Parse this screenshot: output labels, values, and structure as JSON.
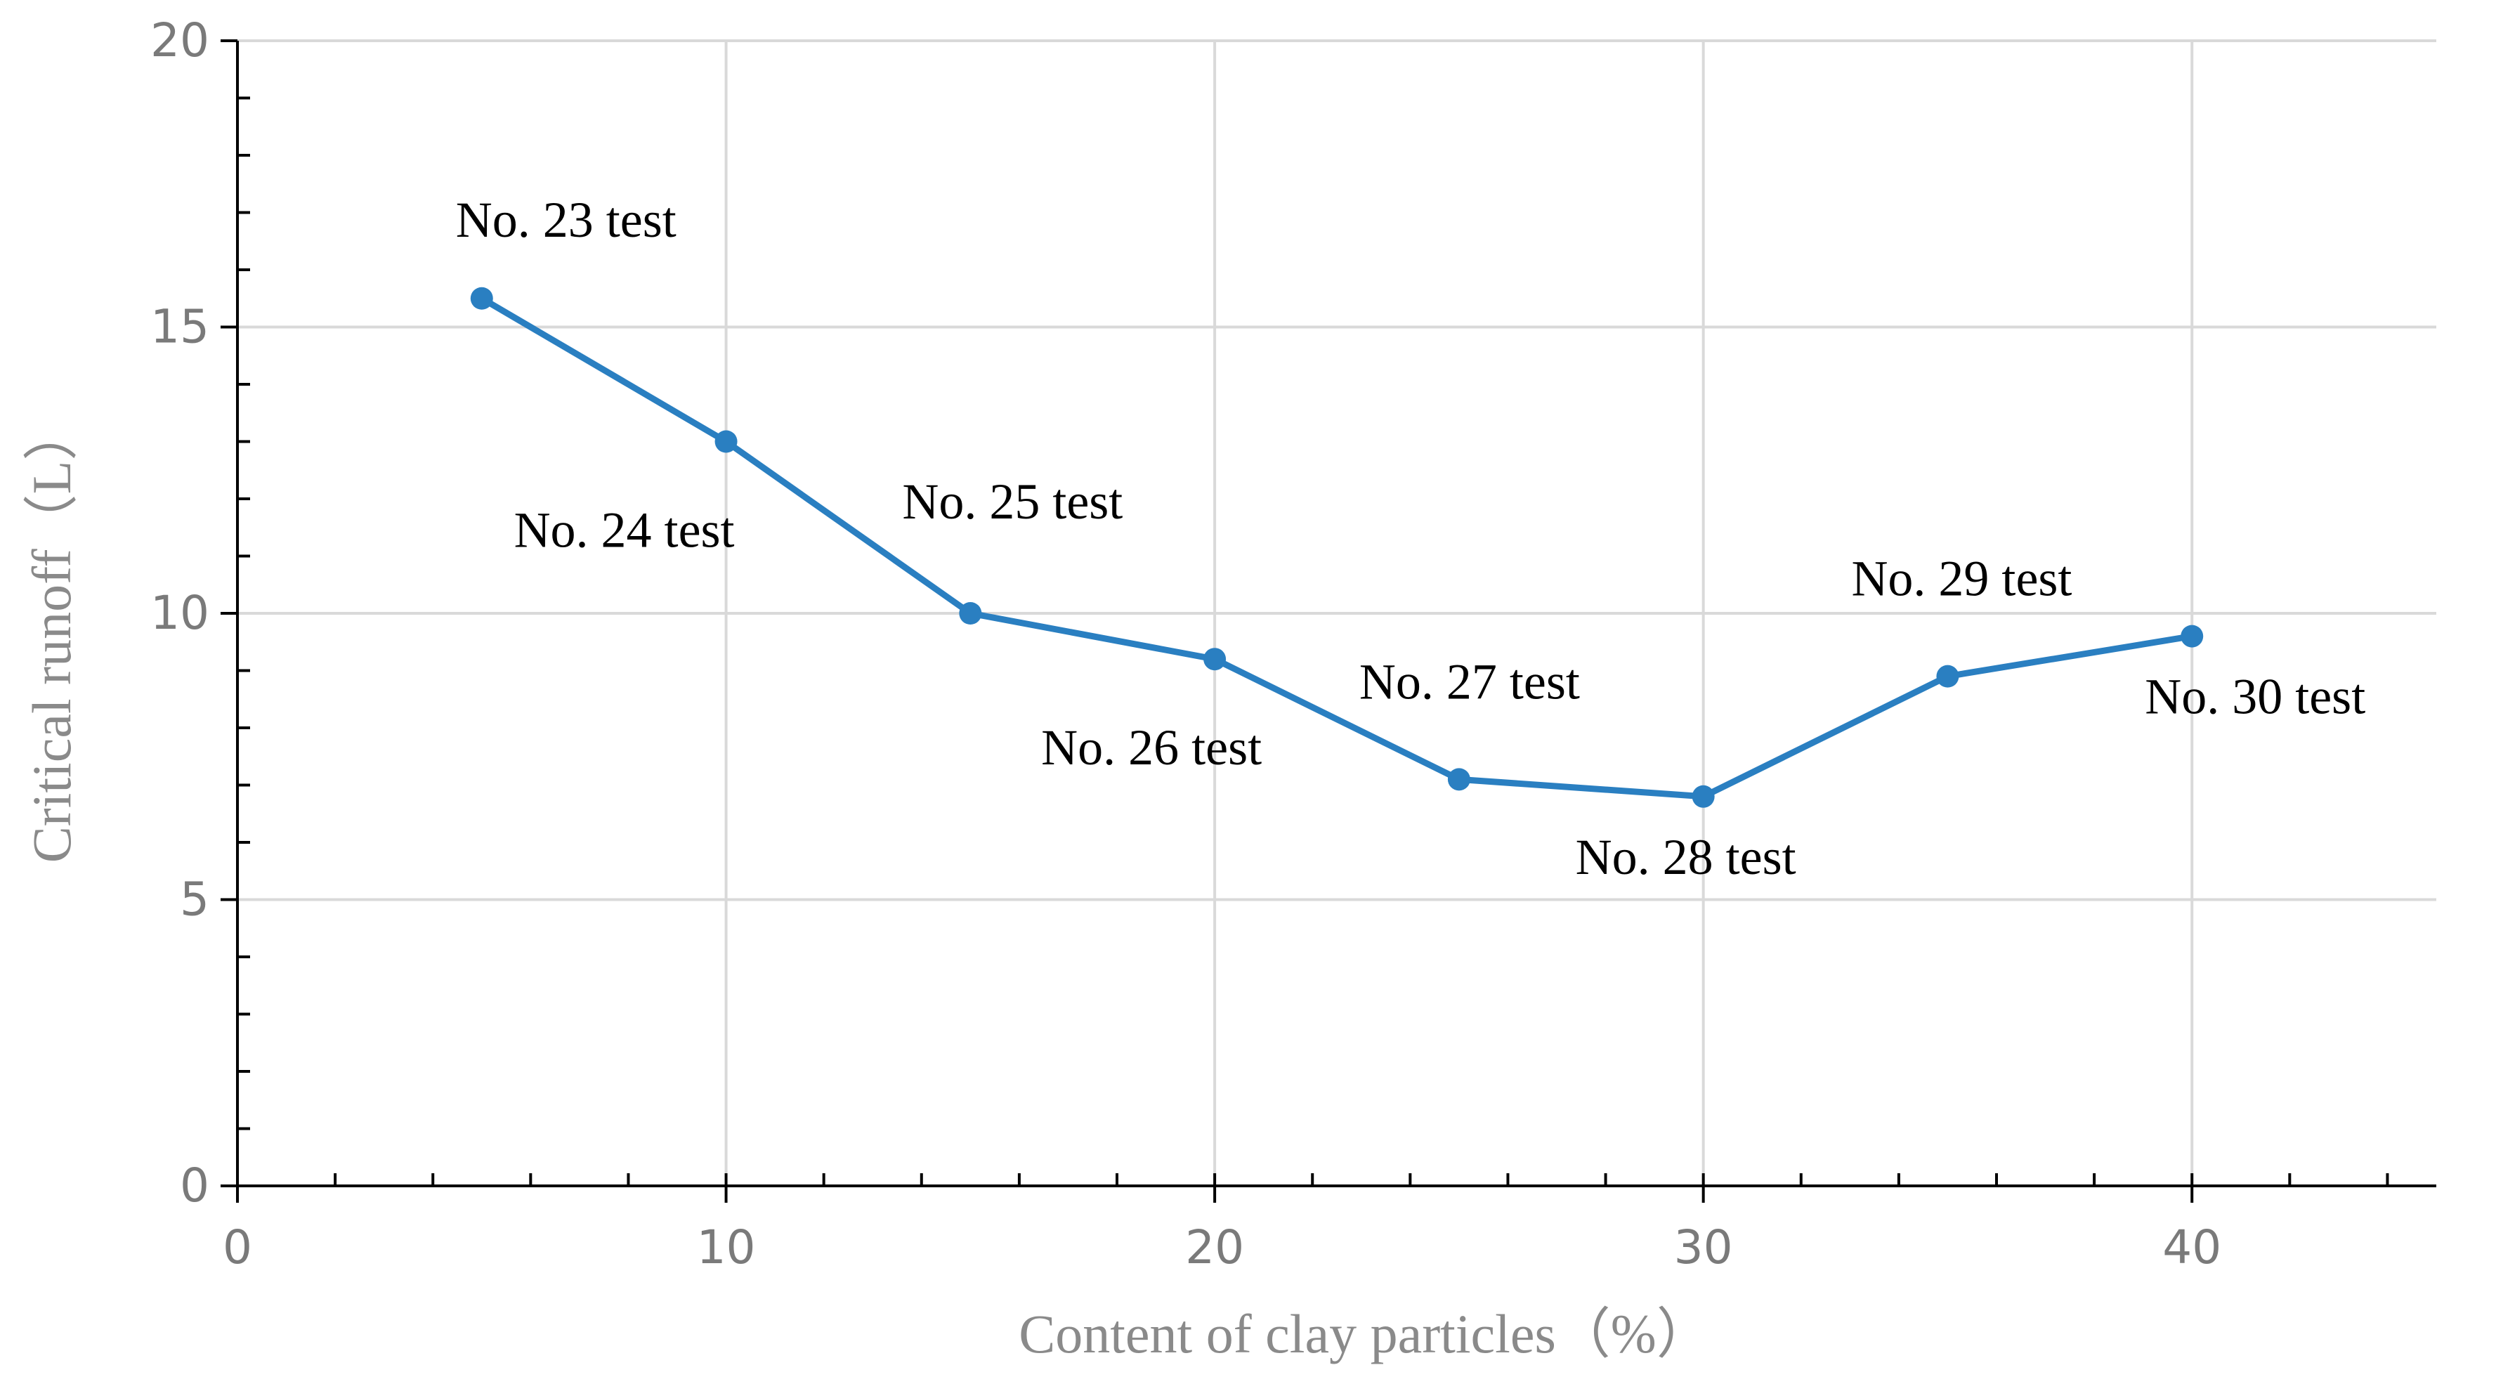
{
  "chart_data": {
    "type": "line",
    "title": "",
    "xlabel": "Content of clay particles（%）",
    "ylabel": "Critical runoff（L）",
    "xlim": [
      0,
      45
    ],
    "ylim": [
      0,
      20
    ],
    "x_ticks": [
      0,
      10,
      20,
      30,
      40
    ],
    "y_ticks": [
      0,
      5,
      10,
      15,
      20
    ],
    "grid": true,
    "legend": "none",
    "series": [
      {
        "color": "#2a7fc1",
        "points": [
          {
            "x": 5,
            "y": 15.5,
            "label": "No. 23 test"
          },
          {
            "x": 10,
            "y": 13.0,
            "label": "No. 24 test"
          },
          {
            "x": 15,
            "y": 10.0,
            "label": "No. 25 test"
          },
          {
            "x": 20,
            "y": 9.2,
            "label": "No. 26 test"
          },
          {
            "x": 25,
            "y": 7.1,
            "label": "No. 27 test"
          },
          {
            "x": 30,
            "y": 6.8,
            "label": "No. 28 test"
          },
          {
            "x": 35,
            "y": 8.9,
            "label": "No. 29 test"
          },
          {
            "x": 40,
            "y": 9.6,
            "label": "No. 30 test"
          }
        ]
      }
    ]
  }
}
